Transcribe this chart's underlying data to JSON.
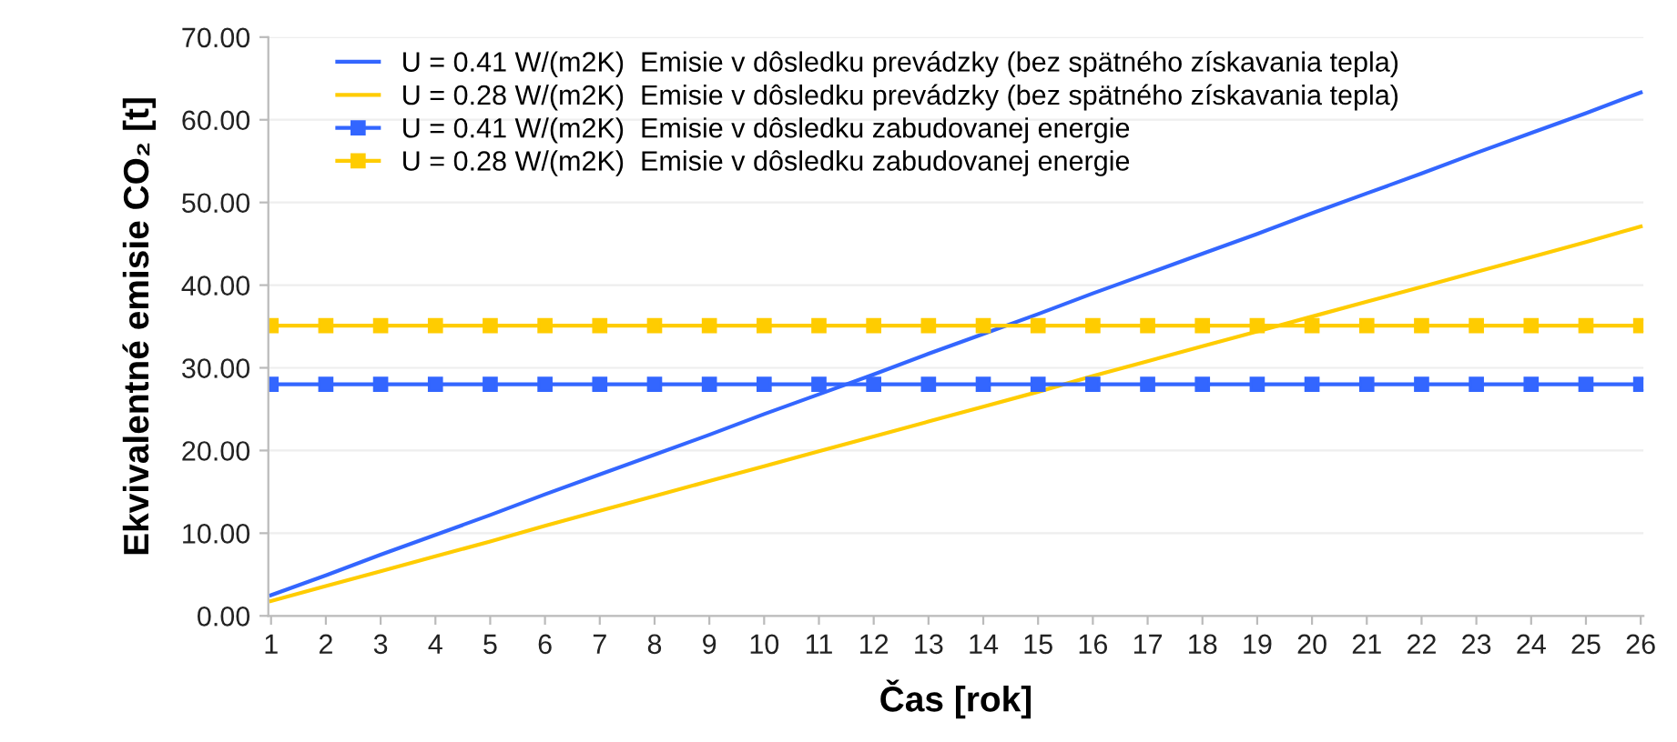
{
  "chart_data": {
    "type": "line",
    "xlabel": "Čas [rok]",
    "ylabel": "Ekvivalentné emisie CO₂ [t]",
    "categories": [
      "1",
      "2",
      "3",
      "4",
      "5",
      "6",
      "7",
      "8",
      "9",
      "10",
      "11",
      "12",
      "13",
      "14",
      "15",
      "16",
      "17",
      "18",
      "19",
      "20",
      "21",
      "22",
      "23",
      "24",
      "25",
      "26"
    ],
    "series": [
      {
        "name": "U = 0.41 W/(m2K)  Emisie v dôsledku prevádzky (bez spätného získavania tepla)",
        "color": "#3366ff",
        "marker": "none",
        "values": [
          2.5,
          4.9,
          7.4,
          9.8,
          12.2,
          14.7,
          17.1,
          19.5,
          21.9,
          24.4,
          26.8,
          29.2,
          31.7,
          34.1,
          36.5,
          39.0,
          41.4,
          43.8,
          46.2,
          48.7,
          51.1,
          53.5,
          56.0,
          58.4,
          60.8,
          63.3
        ]
      },
      {
        "name": "U = 0.28 W/(m2K)  Emisie v dôsledku prevádzky (bez spätného získavania tepla)",
        "color": "#ffcc00",
        "marker": "none",
        "values": [
          1.8,
          3.6,
          5.4,
          7.2,
          9.0,
          10.9,
          12.7,
          14.5,
          16.3,
          18.1,
          19.9,
          21.7,
          23.5,
          25.3,
          27.1,
          29.0,
          30.8,
          32.6,
          34.4,
          36.2,
          38.0,
          39.8,
          41.6,
          43.4,
          45.2,
          47.1
        ]
      },
      {
        "name": "U = 0.41 W/(m2K)  Emisie v dôsledku zabudovanej energie",
        "color": "#3366ff",
        "marker": "square",
        "values": [
          28.0,
          28.0,
          28.0,
          28.0,
          28.0,
          28.0,
          28.0,
          28.0,
          28.0,
          28.0,
          28.0,
          28.0,
          28.0,
          28.0,
          28.0,
          28.0,
          28.0,
          28.0,
          28.0,
          28.0,
          28.0,
          28.0,
          28.0,
          28.0,
          28.0,
          28.0
        ]
      },
      {
        "name": "U = 0.28 W/(m2K)  Emisie v dôsledku zabudovanej energie",
        "color": "#ffcc00",
        "marker": "square",
        "values": [
          35.1,
          35.1,
          35.1,
          35.1,
          35.1,
          35.1,
          35.1,
          35.1,
          35.1,
          35.1,
          35.1,
          35.1,
          35.1,
          35.1,
          35.1,
          35.1,
          35.1,
          35.1,
          35.1,
          35.1,
          35.1,
          35.1,
          35.1,
          35.1,
          35.1,
          35.1
        ]
      }
    ],
    "ylim": [
      0,
      70
    ],
    "yticks": [
      {
        "value": 0,
        "label": "0.00"
      },
      {
        "value": 10,
        "label": "10.00"
      },
      {
        "value": 20,
        "label": "20.00"
      },
      {
        "value": 30,
        "label": "30.00"
      },
      {
        "value": 40,
        "label": "40.00"
      },
      {
        "value": 50,
        "label": "50.00"
      },
      {
        "value": 60,
        "label": "60.00"
      },
      {
        "value": 70,
        "label": "70.00"
      }
    ],
    "grid": "y",
    "legend": "top left",
    "line_style": "solid"
  }
}
